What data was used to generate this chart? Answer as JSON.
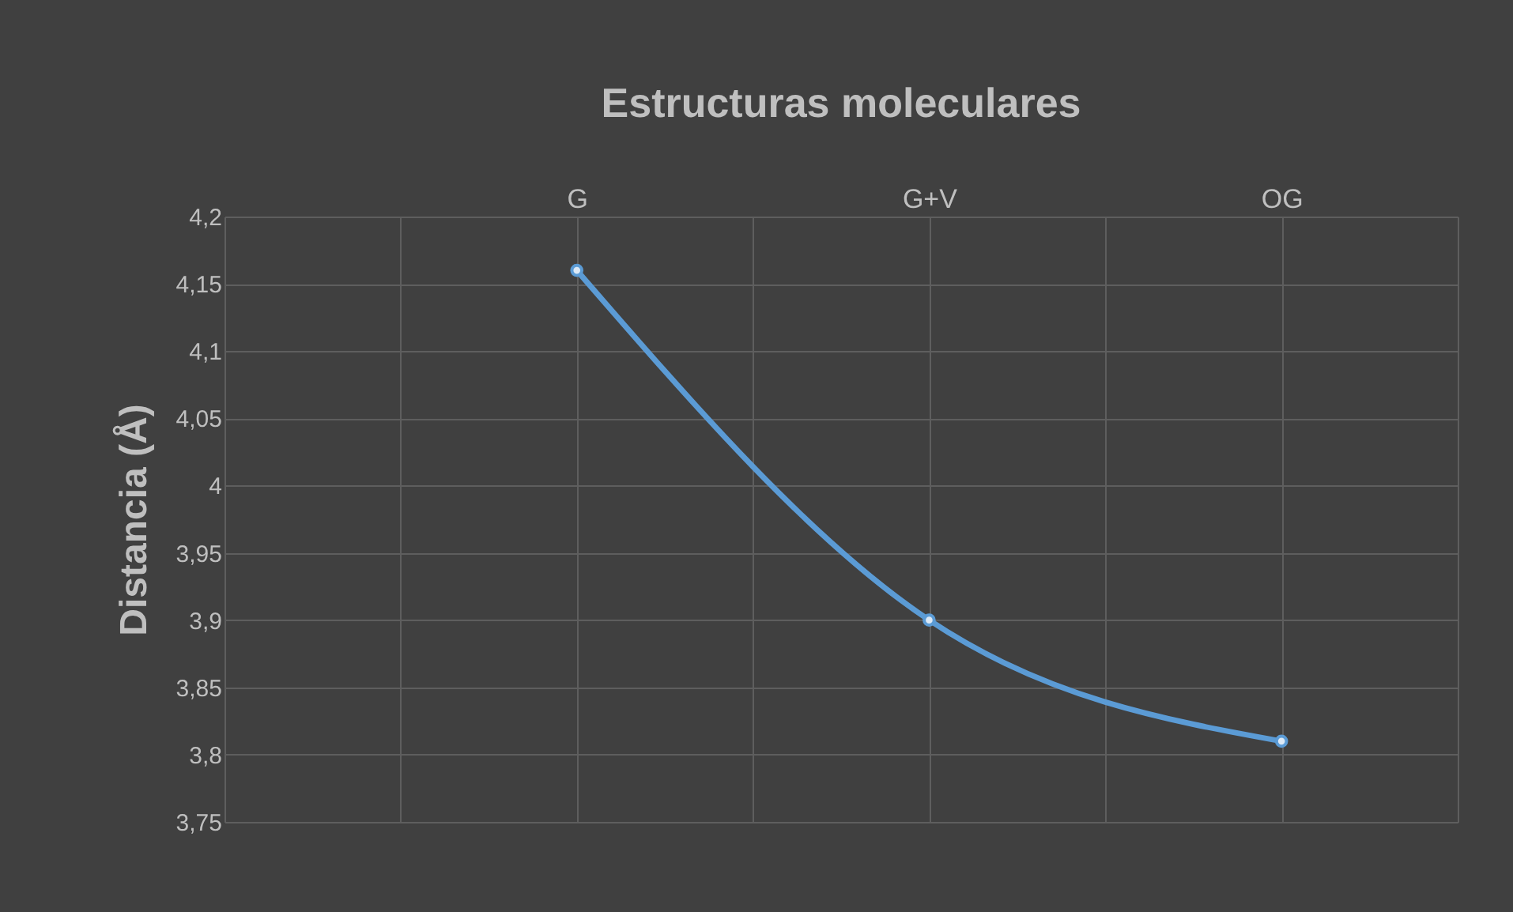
{
  "chart_data": {
    "type": "line",
    "title": "Estructuras moleculares",
    "ylabel": "Distancia (Å)",
    "categories": [
      null,
      "G",
      "G+V",
      "OG"
    ],
    "series": [
      {
        "color": "#5b9bd5",
        "values": [
          null,
          4.16,
          3.9,
          3.81
        ]
      }
    ],
    "ylim": [
      3.75,
      4.2
    ],
    "yticks": [
      {
        "value": 3.75,
        "label": "3,75"
      },
      {
        "value": 3.8,
        "label": "3,8"
      },
      {
        "value": 3.85,
        "label": "3,85"
      },
      {
        "value": 3.9,
        "label": "3,9"
      },
      {
        "value": 3.95,
        "label": "3,95"
      },
      {
        "value": 4.0,
        "label": "4"
      },
      {
        "value": 4.05,
        "label": "4,05"
      },
      {
        "value": 4.1,
        "label": "4,1"
      },
      {
        "value": 4.15,
        "label": "4,15"
      },
      {
        "value": 4.2,
        "label": "4,2"
      }
    ],
    "grid": true,
    "marker": "circle",
    "line_style": "solid"
  }
}
